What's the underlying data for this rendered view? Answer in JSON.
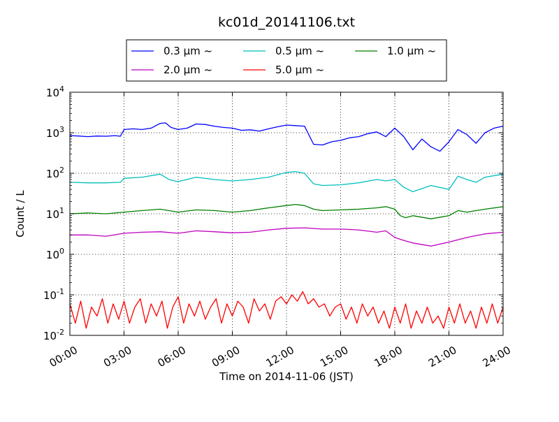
{
  "chart_data": {
    "type": "line",
    "title": "kc01d_20141106.txt",
    "xlabel": "Time on 2014-11-06 (JST)",
    "ylabel": "Count / L",
    "x_unit": "hours",
    "xlim": [
      0,
      24
    ],
    "ylim": [
      0.01,
      10000
    ],
    "yscale": "log",
    "grid": "dotted",
    "legend_position": "top-center",
    "legend_columns": 3,
    "x_ticks": [
      {
        "value": 0,
        "label": "00:00"
      },
      {
        "value": 3,
        "label": "03:00"
      },
      {
        "value": 6,
        "label": "06:00"
      },
      {
        "value": 9,
        "label": "09:00"
      },
      {
        "value": 12,
        "label": "12:00"
      },
      {
        "value": 15,
        "label": "15:00"
      },
      {
        "value": 18,
        "label": "18:00"
      },
      {
        "value": 21,
        "label": "21:00"
      },
      {
        "value": 24,
        "label": "24:00"
      }
    ],
    "y_ticks": [
      {
        "value": 0.01,
        "base": "10",
        "exp": "-2"
      },
      {
        "value": 0.1,
        "base": "10",
        "exp": "-1"
      },
      {
        "value": 1,
        "base": "10",
        "exp": "0"
      },
      {
        "value": 10,
        "base": "10",
        "exp": "1"
      },
      {
        "value": 100,
        "base": "10",
        "exp": "2"
      },
      {
        "value": 1000,
        "base": "10",
        "exp": "3"
      },
      {
        "value": 10000,
        "base": "10",
        "exp": "4"
      }
    ],
    "series": [
      {
        "name": "0.3 μm ~",
        "color": "#0000ff",
        "x": [
          0,
          0.5,
          1,
          1.5,
          2,
          2.5,
          2.8,
          3,
          3.5,
          4,
          4.5,
          5,
          5.3,
          5.6,
          6,
          6.5,
          7,
          7.5,
          8,
          8.5,
          9,
          9.5,
          10,
          10.5,
          11,
          11.5,
          12,
          12.5,
          13,
          13.5,
          14,
          14.5,
          15,
          15.5,
          16,
          16.5,
          17,
          17.5,
          18,
          18.5,
          19,
          19.5,
          20,
          20.5,
          21,
          21.5,
          22,
          22.5,
          23,
          23.5,
          24
        ],
        "y": [
          850,
          830,
          800,
          830,
          820,
          850,
          820,
          1200,
          1250,
          1200,
          1300,
          1700,
          1750,
          1350,
          1200,
          1300,
          1650,
          1600,
          1450,
          1350,
          1300,
          1150,
          1180,
          1100,
          1250,
          1400,
          1550,
          1500,
          1450,
          520,
          500,
          600,
          650,
          750,
          800,
          950,
          1050,
          800,
          1300,
          800,
          380,
          700,
          450,
          350,
          600,
          1200,
          900,
          550,
          1000,
          1300,
          1450
        ]
      },
      {
        "name": "0.5 μm ~",
        "color": "#00bfbf",
        "x": [
          0,
          1,
          2,
          2.8,
          3,
          4,
          5,
          5.5,
          6,
          7,
          8,
          9,
          10,
          11,
          12,
          12.5,
          13,
          13.5,
          14,
          15,
          16,
          17,
          17.5,
          18,
          18.5,
          19,
          20,
          21,
          21.5,
          22,
          22.5,
          23,
          24
        ],
        "y": [
          60,
          58,
          58,
          60,
          75,
          80,
          95,
          70,
          62,
          80,
          70,
          65,
          70,
          80,
          105,
          110,
          100,
          55,
          50,
          52,
          58,
          70,
          65,
          70,
          45,
          35,
          50,
          40,
          85,
          70,
          60,
          80,
          95
        ]
      },
      {
        "name": "1.0 μm ~",
        "color": "#008000",
        "x": [
          0,
          1,
          2,
          3,
          4,
          5,
          6,
          7,
          8,
          9,
          10,
          11,
          12,
          12.5,
          13,
          13.5,
          14,
          15,
          16,
          17,
          17.5,
          18,
          18.3,
          18.6,
          19,
          20,
          21,
          21.5,
          22,
          23,
          24
        ],
        "y": [
          10,
          10.5,
          10,
          11,
          12,
          13,
          11,
          12.5,
          12,
          11,
          12,
          14,
          16,
          17,
          16,
          13,
          12,
          12.5,
          13,
          14,
          15,
          13,
          9,
          8,
          9,
          7.5,
          9,
          12,
          11,
          13,
          15
        ]
      },
      {
        "name": "2.0 μm ~",
        "color": "#bf00bf",
        "x": [
          0,
          1,
          2,
          3,
          4,
          5,
          6,
          7,
          8,
          9,
          10,
          11,
          12,
          13,
          14,
          15,
          16,
          17,
          17.5,
          18,
          18.5,
          19,
          20,
          21,
          22,
          23,
          24
        ],
        "y": [
          3,
          3,
          2.8,
          3.3,
          3.5,
          3.6,
          3.3,
          3.8,
          3.6,
          3.4,
          3.5,
          4,
          4.4,
          4.5,
          4.2,
          4.2,
          4,
          3.5,
          3.8,
          2.6,
          2.2,
          1.9,
          1.6,
          2,
          2.6,
          3.2,
          3.5
        ]
      },
      {
        "name": "5.0 μm ~",
        "color": "#ff0000",
        "x": [
          0,
          0.3,
          0.6,
          0.9,
          1.2,
          1.5,
          1.8,
          2.1,
          2.4,
          2.7,
          3,
          3.3,
          3.6,
          3.9,
          4.2,
          4.5,
          4.8,
          5.1,
          5.4,
          5.7,
          6,
          6.3,
          6.6,
          6.9,
          7.2,
          7.5,
          7.8,
          8.1,
          8.4,
          8.7,
          9,
          9.3,
          9.6,
          9.9,
          10.2,
          10.5,
          10.8,
          11.1,
          11.4,
          11.7,
          12,
          12.3,
          12.6,
          12.9,
          13.2,
          13.5,
          13.8,
          14.1,
          14.4,
          14.7,
          15,
          15.3,
          15.6,
          15.9,
          16.2,
          16.5,
          16.8,
          17.1,
          17.4,
          17.7,
          18,
          18.3,
          18.6,
          18.9,
          19.2,
          19.5,
          19.8,
          20.1,
          20.4,
          20.7,
          21,
          21.3,
          21.6,
          21.9,
          22.2,
          22.5,
          22.8,
          23.1,
          23.4,
          23.7,
          24
        ],
        "y": [
          0.06,
          0.02,
          0.07,
          0.015,
          0.05,
          0.03,
          0.08,
          0.02,
          0.06,
          0.025,
          0.07,
          0.02,
          0.05,
          0.08,
          0.02,
          0.06,
          0.03,
          0.07,
          0.015,
          0.05,
          0.09,
          0.02,
          0.06,
          0.03,
          0.07,
          0.025,
          0.05,
          0.08,
          0.02,
          0.06,
          0.03,
          0.07,
          0.05,
          0.02,
          0.08,
          0.04,
          0.06,
          0.025,
          0.07,
          0.09,
          0.06,
          0.1,
          0.07,
          0.12,
          0.06,
          0.08,
          0.05,
          0.06,
          0.03,
          0.05,
          0.06,
          0.025,
          0.05,
          0.02,
          0.06,
          0.03,
          0.05,
          0.02,
          0.04,
          0.015,
          0.05,
          0.02,
          0.06,
          0.015,
          0.04,
          0.02,
          0.05,
          0.02,
          0.03,
          0.015,
          0.05,
          0.02,
          0.06,
          0.02,
          0.04,
          0.015,
          0.05,
          0.02,
          0.06,
          0.02,
          0.05
        ]
      }
    ]
  }
}
